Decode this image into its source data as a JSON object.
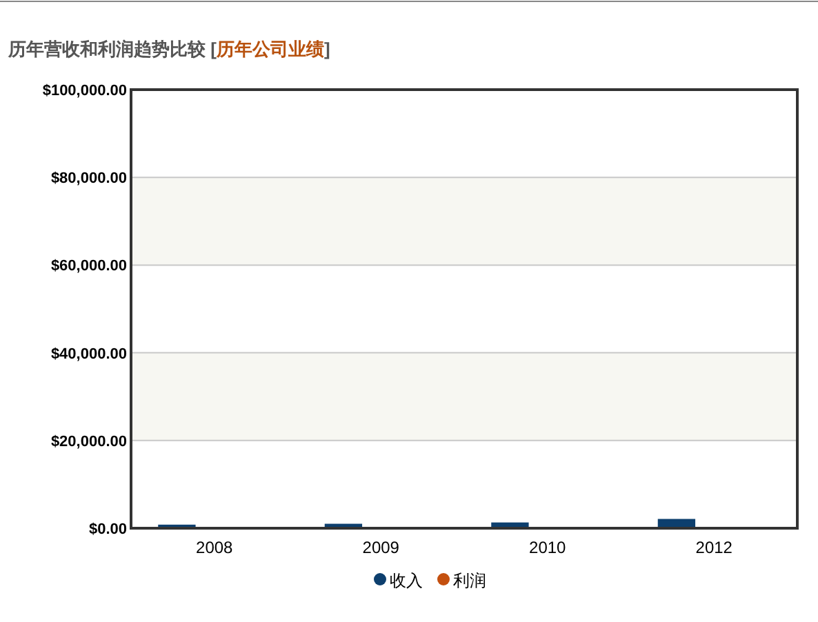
{
  "chart_data": {
    "type": "bar",
    "title": "历年营收和利润趋势比较",
    "subtitle": "[历年公司业绩]",
    "categories": [
      "2008",
      "2009",
      "2010",
      "2012"
    ],
    "series": [
      {
        "name": "收入",
        "color": "#0d3f6e",
        "values": [
          500,
          700,
          1000,
          1800
        ]
      },
      {
        "name": "利润",
        "color": "#c4500f",
        "values": [
          0,
          0,
          0,
          0
        ]
      }
    ],
    "ylim": [
      0,
      100000
    ],
    "yticks": [
      {
        "value": 0,
        "label": "$0.00"
      },
      {
        "value": 20000,
        "label": "$20,000.00"
      },
      {
        "value": 40000,
        "label": "$40,000.00"
      },
      {
        "value": 60000,
        "label": "$60,000.00"
      },
      {
        "value": 80000,
        "label": "$80,000.00"
      },
      {
        "value": 100000,
        "label": "$100,000.00"
      }
    ],
    "bands": [
      {
        "axis": "y",
        "from": 20000,
        "to": 40000,
        "color": "#f7f7f2"
      },
      {
        "axis": "y",
        "from": 60000,
        "to": 80000,
        "color": "#f7f7f2"
      }
    ],
    "grid": "y",
    "legend": "bottom"
  }
}
